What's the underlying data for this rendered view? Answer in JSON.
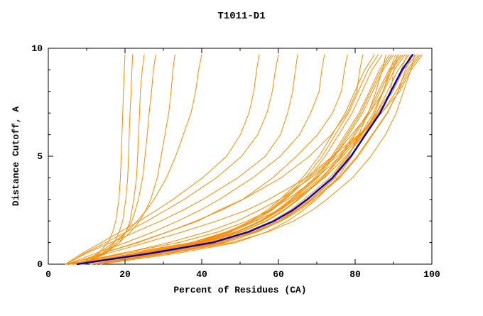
{
  "chart_data": {
    "type": "line",
    "title": "T1011-D1",
    "xlabel": "Percent of Residues (CA)",
    "ylabel": "Distance Cutoff, A",
    "xlim": [
      0,
      100
    ],
    "ylim": [
      0,
      10
    ],
    "x_ticks": [
      0,
      20,
      40,
      60,
      80,
      100
    ],
    "y_ticks": [
      0,
      5,
      10
    ],
    "x_minor_step": 10,
    "y_minor_step": 1,
    "grid": false,
    "legend": "none",
    "colors": {
      "model_curves": "#ff8c00",
      "highlight_curve": "#0000cd",
      "axis": "#000000",
      "background": "#ffffff"
    },
    "y_cutoffs": [
      0,
      0.5,
      1,
      1.5,
      2,
      2.5,
      3,
      4,
      5,
      6,
      7,
      8,
      9,
      9.7
    ],
    "model_curves_x": [
      [
        7.8,
        27.2,
        43.7,
        53.4,
        60.1,
        65.0,
        68.9,
        75.7,
        80.5,
        84.4,
        88.3,
        91.2,
        94.1,
        97
      ],
      [
        6.1,
        23.0,
        39.4,
        49.0,
        55.7,
        60.5,
        64.3,
        71.0,
        76.8,
        81.6,
        85.4,
        89.3,
        92.6,
        96
      ],
      [
        12.4,
        31.5,
        47.8,
        57.3,
        64.0,
        68.8,
        72.6,
        79.3,
        84.1,
        87.9,
        90.7,
        92.6,
        94.5,
        95.5
      ],
      [
        7.5,
        26.3,
        42.3,
        51.7,
        58.3,
        63.0,
        66.7,
        73.3,
        78.0,
        81.8,
        85.5,
        88.4,
        91.2,
        94
      ],
      [
        5.6,
        20.5,
        37.2,
        46.5,
        53.0,
        58.0,
        61.4,
        68.0,
        74.4,
        79.1,
        83.7,
        87.4,
        90.2,
        93
      ],
      [
        7.4,
        25.8,
        41.4,
        50.6,
        57.0,
        61.6,
        65.3,
        71.8,
        76.4,
        80.0,
        83.7,
        86.5,
        89.2,
        92
      ],
      [
        5.8,
        19.3,
        31.4,
        41.5,
        49.2,
        55.0,
        60.3,
        68.5,
        75.3,
        81.1,
        86.9,
        90.7,
        93.6,
        96.5
      ],
      [
        10.9,
        29.1,
        44.6,
        54.1,
        60.1,
        64.6,
        68.3,
        74.6,
        79.2,
        82.8,
        86.5,
        89.2,
        90.1,
        91
      ],
      [
        7.2,
        25.2,
        40.5,
        49.5,
        55.8,
        60.3,
        63.9,
        70.2,
        74.7,
        78.3,
        81.9,
        84.6,
        87.3,
        90
      ],
      [
        7.1,
        24.9,
        40.1,
        49.0,
        55.2,
        59.6,
        63.2,
        69.4,
        73.9,
        77.4,
        81.0,
        83.7,
        86.3,
        89
      ],
      [
        11.4,
        30.8,
        46.2,
        54.6,
        60.7,
        64.9,
        68.6,
        74.8,
        78.3,
        80.9,
        83.4,
        85.4,
        87.1,
        88
      ],
      [
        7.0,
        24.4,
        39.2,
        47.9,
        53.9,
        58.3,
        61.8,
        67.9,
        72.2,
        75.7,
        79.2,
        81.8,
        84.4,
        87
      ],
      [
        6.5,
        22.4,
        37.4,
        46.8,
        54.2,
        59.8,
        64.5,
        72.0,
        77.6,
        82.3,
        86.0,
        89.8,
        92.0,
        93.5
      ],
      [
        6.8,
        23.8,
        38.3,
        46.8,
        52.7,
        57.0,
        60.4,
        66.3,
        70.6,
        74.0,
        77.4,
        79.9,
        82.5,
        85
      ],
      [
        8.6,
        28.5,
        44.7,
        54.2,
        60.8,
        65.6,
        69.4,
        76.0,
        80.8,
        84.6,
        88.4,
        91.2,
        93.1,
        95
      ],
      [
        13.6,
        33.5,
        48.9,
        57.0,
        62.4,
        66.5,
        69.9,
        75.4,
        79.2,
        82.4,
        85.1,
        87.3,
        89.1,
        90.5
      ],
      [
        5.7,
        18.9,
        34.0,
        44.4,
        51.9,
        57.7,
        62.4,
        70.0,
        76.1,
        81.3,
        85.9,
        89.8,
        92.6,
        94.5
      ],
      [
        6.9,
        24.1,
        38.7,
        47.3,
        53.3,
        57.6,
        61.1,
        67.1,
        71.4,
        74.8,
        78.3,
        80.8,
        83.4,
        86
      ],
      [
        4.9,
        15.6,
        25.4,
        35.1,
        43.9,
        51.7,
        57.5,
        67.3,
        74.1,
        80.9,
        86.8,
        91.6,
        94.6,
        97.5
      ],
      [
        11.1,
        30.5,
        45.3,
        53.7,
        59.9,
        64.2,
        67.8,
        73.9,
        78.0,
        81.4,
        84.7,
        87.2,
        89.5,
        92.5
      ],
      [
        7.2,
        25.1,
        40.3,
        49.2,
        55.5,
        60.0,
        63.5,
        69.8,
        74.3,
        77.9,
        81.4,
        84.1,
        86.8,
        89.5
      ],
      [
        7.3,
        25.6,
        41.2,
        50.3,
        56.7,
        61.3,
        65.0,
        71.4,
        76.0,
        79.6,
        83.3,
        86.0,
        88.8,
        91.5
      ],
      [
        5.5,
        14.0,
        23.4,
        31.2,
        39.0,
        44.5,
        50.7,
        58.5,
        64.7,
        70.2,
        74.1,
        76.4,
        77.2,
        78
      ],
      [
        5.0,
        12.2,
        20.2,
        27.4,
        33.8,
        39.6,
        44.6,
        53.3,
        60.5,
        65.5,
        68.4,
        70.6,
        71.3,
        72
      ],
      [
        4.6,
        9.8,
        16.3,
        22.8,
        29.3,
        35.1,
        40.3,
        49.4,
        56.6,
        60.5,
        62.4,
        63.7,
        64.4,
        65
      ],
      [
        5.7,
        13.9,
        23.0,
        31.2,
        38.5,
        45.1,
        50.8,
        60.7,
        68.1,
        73.8,
        77.9,
        80.4,
        81.2,
        82
      ],
      [
        4.5,
        8.8,
        13.8,
        18.7,
        23.7,
        28.2,
        32.5,
        40.2,
        46.5,
        50.1,
        52.3,
        53.6,
        54.3,
        55
      ],
      [
        4.8,
        9.4,
        15.0,
        20.4,
        25.8,
        30.6,
        35.4,
        43.8,
        50.4,
        54.6,
        57.0,
        58.4,
        59.2,
        60
      ],
      [
        8.0,
        13.0,
        15.6,
        16.8,
        17.6,
        18.0,
        18.4,
        18.8,
        19.0,
        19.2,
        19.4,
        19.6,
        19.8,
        20
      ],
      [
        9.0,
        14.3,
        17.2,
        18.5,
        19.4,
        19.8,
        20.2,
        20.7,
        20.9,
        21.1,
        21.3,
        21.6,
        21.8,
        22
      ],
      [
        9.5,
        15.0,
        18.5,
        20.3,
        21.3,
        21.8,
        22.3,
        23.0,
        23.3,
        23.5,
        23.8,
        24.0,
        24.5,
        25
      ],
      [
        8.5,
        14.0,
        17.9,
        20.2,
        21.8,
        22.7,
        23.5,
        24.6,
        25.2,
        25.8,
        26.3,
        26.9,
        27.4,
        28
      ],
      [
        9.0,
        14.5,
        18.5,
        21.5,
        23.8,
        25.4,
        26.7,
        28.4,
        29.4,
        30.4,
        31.4,
        32.0,
        32.5,
        33
      ],
      [
        8.0,
        13.0,
        17.0,
        20.4,
        23.2,
        25.6,
        27.6,
        30.8,
        33.2,
        35.2,
        37.2,
        38.4,
        39.2,
        40
      ]
    ],
    "highlight_curve_x": [
      7.6,
      26.6,
      42.8,
      52.3,
      58.9,
      63.7,
      67.5,
      74.1,
      78.9,
      82.7,
      86.5,
      89.3,
      92.2,
      95
    ]
  }
}
